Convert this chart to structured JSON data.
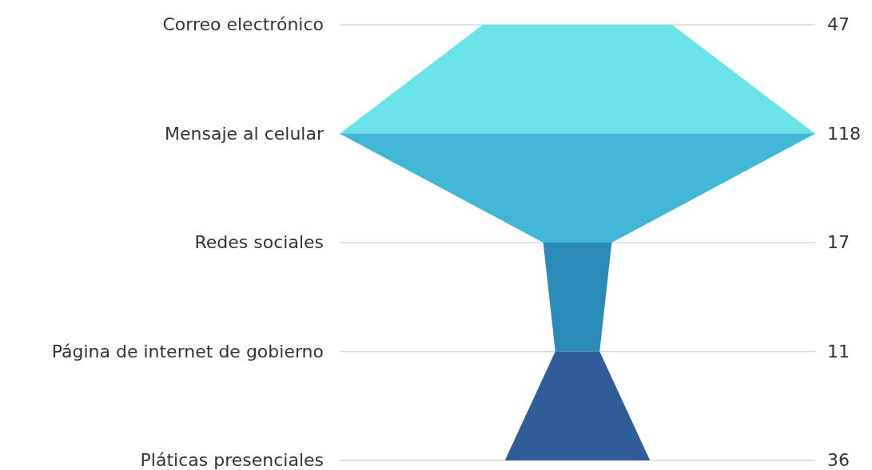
{
  "chart_data": {
    "type": "other",
    "categories": [
      "Correo electrónico",
      "Mensaje al celular",
      "Redes sociales",
      "Página de internet de gobierno",
      "Pláticas presenciales"
    ],
    "values": [
      47,
      118,
      17,
      11,
      36
    ],
    "colors": [
      "#6ae3e8",
      "#41b6d6",
      "#2a8ab8",
      "#2e5d97",
      "#2e5d97"
    ],
    "data_labels": true
  }
}
